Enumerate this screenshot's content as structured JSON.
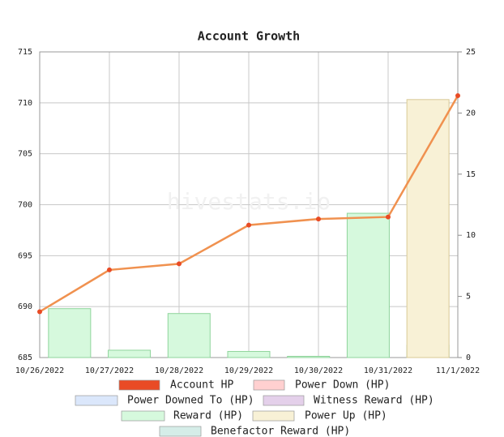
{
  "chart_data": {
    "type": "combo",
    "title": "Account Growth",
    "watermark": "hivestats.io",
    "categories": [
      "10/26/2022",
      "10/27/2022",
      "10/28/2022",
      "10/29/2022",
      "10/30/2022",
      "10/31/2022",
      "11/1/2022"
    ],
    "ylim": [
      685,
      715
    ],
    "yticks": [
      685,
      690,
      695,
      700,
      705,
      710,
      715
    ],
    "y2lim": [
      0,
      25
    ],
    "y2ticks": [
      0,
      5,
      10,
      15,
      20,
      25
    ],
    "grid": true,
    "series": [
      {
        "name": "Account HP",
        "kind": "line",
        "color": "#e94b25",
        "line_color": "#f0914f",
        "values": [
          689.5,
          693.6,
          694.2,
          698.0,
          698.6,
          698.8,
          710.7
        ]
      },
      {
        "name": "Power Down (HP)",
        "color": "#ffd0d0"
      },
      {
        "name": "Power Downed To (HP)",
        "color": "#dbe7fb"
      },
      {
        "name": "Witness Reward (HP)",
        "color": "#e4d0ea"
      },
      {
        "name": "Reward (HP)",
        "kind": "bar",
        "axis": "y2",
        "color": "#d6f9dd",
        "values": [
          4.0,
          0.6,
          3.6,
          0.5,
          0.1,
          11.8,
          1.0
        ]
      },
      {
        "name": "Power Up (HP)",
        "kind": "bar",
        "axis": "y2",
        "color": "#f8f1d6",
        "values": [
          0,
          0,
          0,
          0,
          0,
          0,
          21.1
        ]
      },
      {
        "name": "Benefactor Reward (HP)",
        "color": "#d5ede8"
      }
    ]
  }
}
